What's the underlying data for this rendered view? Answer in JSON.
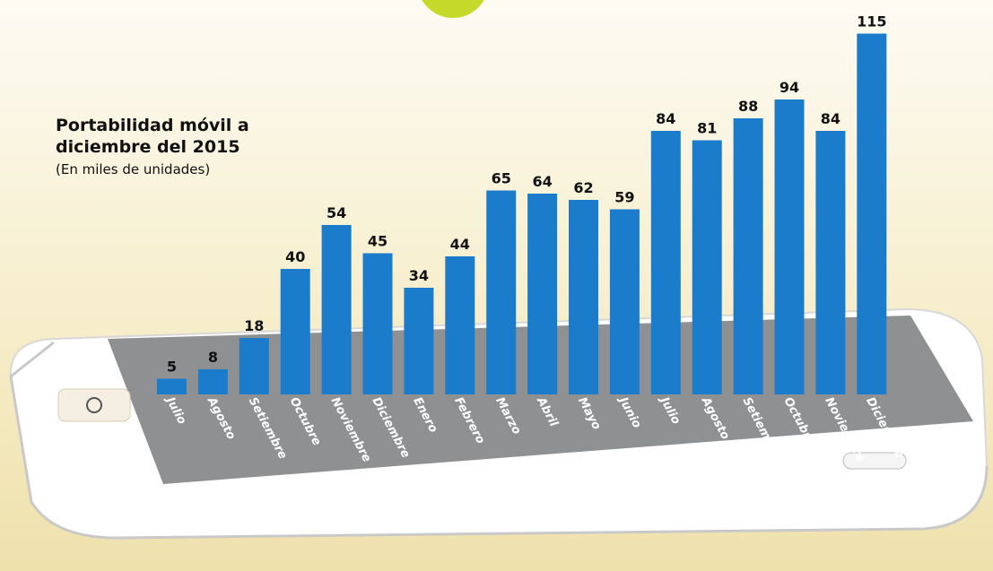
{
  "chart_data": {
    "type": "bar",
    "title": "Portabilidad móvil a diciembre del 2015",
    "subtitle": "(En miles de unidades)",
    "categories": [
      "Julio",
      "Agosto",
      "Setiembre",
      "Octubre",
      "Noviembre",
      "Diciembre",
      "Enero",
      "Febrero",
      "Marzo",
      "Abril",
      "Mayo",
      "Junio",
      "Julio",
      "Agosto",
      "Setiembre",
      "Octubre",
      "Noviembre",
      "Diciembre"
    ],
    "values": [
      5,
      8,
      18,
      40,
      54,
      45,
      34,
      44,
      65,
      64,
      62,
      59,
      84,
      81,
      88,
      94,
      84,
      115
    ],
    "color": "#1b7ccc"
  }
}
